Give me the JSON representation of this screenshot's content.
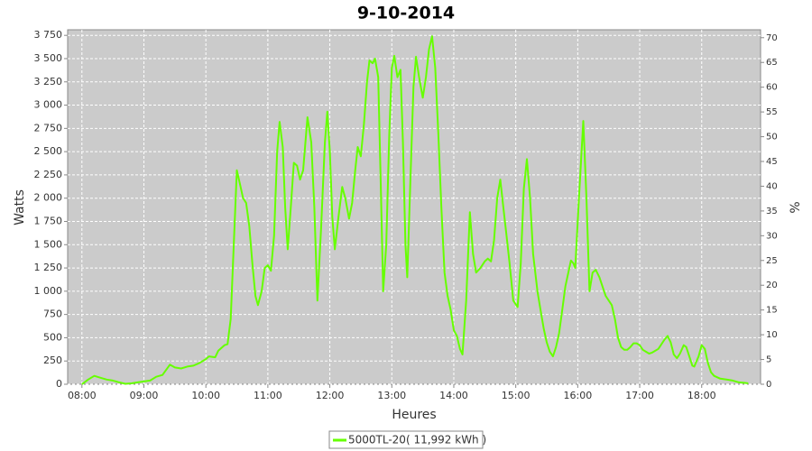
{
  "chart_data": {
    "type": "line",
    "title": "9-10-2014",
    "x_label": "Heures",
    "y_label": "Watts",
    "y2_label": "%",
    "xlim": [
      7.77,
      18.95
    ],
    "xticks": [
      {
        "value": 8,
        "label": "08:00"
      },
      {
        "value": 9,
        "label": "09:00"
      },
      {
        "value": 10,
        "label": "10:00"
      },
      {
        "value": 11,
        "label": "11:00"
      },
      {
        "value": 12,
        "label": "12:00"
      },
      {
        "value": 13,
        "label": "13:00"
      },
      {
        "value": 14,
        "label": "14:00"
      },
      {
        "value": 15,
        "label": "15:00"
      },
      {
        "value": 16,
        "label": "16:00"
      },
      {
        "value": 17,
        "label": "17:00"
      },
      {
        "value": 18,
        "label": "18:00"
      }
    ],
    "ylim": [
      0,
      3810
    ],
    "yticks": [
      0,
      250,
      500,
      750,
      {
        "value": 1000,
        "label": "1 000"
      },
      {
        "value": 1250,
        "label": "1 250"
      },
      {
        "value": 1500,
        "label": "1 500"
      },
      {
        "value": 1750,
        "label": "1 750"
      },
      {
        "value": 2000,
        "label": "2 000"
      },
      {
        "value": 2250,
        "label": "2 250"
      },
      {
        "value": 2500,
        "label": "2 500"
      },
      {
        "value": 2750,
        "label": "2 750"
      },
      {
        "value": 3000,
        "label": "3 000"
      },
      {
        "value": 3250,
        "label": "3 250"
      },
      {
        "value": 3500,
        "label": "3 500"
      },
      {
        "value": 3750,
        "label": "3 750"
      }
    ],
    "y2lim": [
      0,
      71.6
    ],
    "y2ticks": [
      0,
      5,
      10,
      15,
      20,
      25,
      30,
      35,
      40,
      45,
      50,
      55,
      60,
      65,
      70
    ],
    "grid": true,
    "legend": "bottom",
    "series": [
      {
        "name": "5000TL-20( 11,992 kWh )",
        "color": "#66ff00",
        "x": [
          8.0,
          8.1,
          8.2,
          8.3,
          8.4,
          8.5,
          8.6,
          8.7,
          8.8,
          8.9,
          9.0,
          9.1,
          9.2,
          9.3,
          9.42,
          9.5,
          9.6,
          9.7,
          9.8,
          9.9,
          10.0,
          10.05,
          10.15,
          10.2,
          10.3,
          10.35,
          10.4,
          10.45,
          10.5,
          10.55,
          10.6,
          10.65,
          10.7,
          10.75,
          10.8,
          10.84,
          10.9,
          10.95,
          11.0,
          11.05,
          11.1,
          11.15,
          11.19,
          11.24,
          11.28,
          11.32,
          11.37,
          11.42,
          11.47,
          11.52,
          11.57,
          11.64,
          11.7,
          11.75,
          11.8,
          11.86,
          11.92,
          11.96,
          12.0,
          12.04,
          12.08,
          12.14,
          12.2,
          12.25,
          12.31,
          12.36,
          12.41,
          12.45,
          12.5,
          12.55,
          12.6,
          12.64,
          12.69,
          12.73,
          12.78,
          12.82,
          12.86,
          12.91,
          12.96,
          13.0,
          13.04,
          13.09,
          13.14,
          13.18,
          13.22,
          13.25,
          13.3,
          13.35,
          13.39,
          13.44,
          13.5,
          13.55,
          13.6,
          13.65,
          13.7,
          13.75,
          13.8,
          13.85,
          13.9,
          13.95,
          14.0,
          14.05,
          14.1,
          14.14,
          14.2,
          14.26,
          14.31,
          14.36,
          14.43,
          14.5,
          14.55,
          14.6,
          14.65,
          14.7,
          14.75,
          14.8,
          14.85,
          14.9,
          14.96,
          15.03,
          15.08,
          15.13,
          15.18,
          15.23,
          15.28,
          15.35,
          15.4,
          15.45,
          15.5,
          15.55,
          15.6,
          15.65,
          15.7,
          15.75,
          15.8,
          15.89,
          15.93,
          15.96,
          16.02,
          16.09,
          16.14,
          16.19,
          16.24,
          16.29,
          16.35,
          16.4,
          16.45,
          16.5,
          16.55,
          16.6,
          16.65,
          16.7,
          16.75,
          16.8,
          16.85,
          16.9,
          16.95,
          17.0,
          17.05,
          17.1,
          17.15,
          17.2,
          17.3,
          17.4,
          17.45,
          17.5,
          17.55,
          17.6,
          17.65,
          17.71,
          17.75,
          17.8,
          17.85,
          17.88,
          17.95,
          18.0,
          18.05,
          18.1,
          18.15,
          18.2,
          18.3,
          18.4,
          18.5,
          18.6,
          18.7,
          18.75
        ],
        "values": [
          0,
          50,
          90,
          70,
          50,
          40,
          20,
          5,
          10,
          20,
          30,
          40,
          80,
          100,
          210,
          180,
          170,
          190,
          200,
          230,
          270,
          300,
          290,
          360,
          420,
          430,
          700,
          1500,
          2300,
          2150,
          2000,
          1950,
          1700,
          1300,
          950,
          850,
          1000,
          1250,
          1280,
          1220,
          1600,
          2500,
          2820,
          2550,
          1900,
          1450,
          1900,
          2380,
          2350,
          2200,
          2300,
          2870,
          2600,
          1900,
          900,
          1700,
          2600,
          2930,
          2500,
          1800,
          1450,
          1800,
          2120,
          2000,
          1780,
          1950,
          2300,
          2550,
          2450,
          2800,
          3250,
          3480,
          3450,
          3500,
          3300,
          2200,
          1000,
          1500,
          2700,
          3400,
          3530,
          3300,
          3380,
          2600,
          1500,
          1150,
          2200,
          3200,
          3520,
          3300,
          3080,
          3300,
          3600,
          3740,
          3400,
          2700,
          1900,
          1200,
          950,
          800,
          580,
          520,
          380,
          320,
          900,
          1850,
          1400,
          1200,
          1250,
          1320,
          1350,
          1320,
          1550,
          2000,
          2200,
          1900,
          1600,
          1300,
          900,
          830,
          1300,
          2100,
          2420,
          2000,
          1400,
          1000,
          800,
          600,
          450,
          350,
          300,
          400,
          550,
          800,
          1050,
          1330,
          1300,
          1250,
          2000,
          2830,
          2000,
          1000,
          1200,
          1230,
          1150,
          1050,
          950,
          900,
          850,
          700,
          500,
          400,
          370,
          370,
          400,
          440,
          440,
          420,
          370,
          350,
          330,
          340,
          380,
          480,
          520,
          450,
          320,
          280,
          330,
          420,
          400,
          300,
          200,
          190,
          300,
          420,
          380,
          230,
          130,
          90,
          60,
          50,
          40,
          20,
          15,
          10
        ]
      }
    ]
  }
}
